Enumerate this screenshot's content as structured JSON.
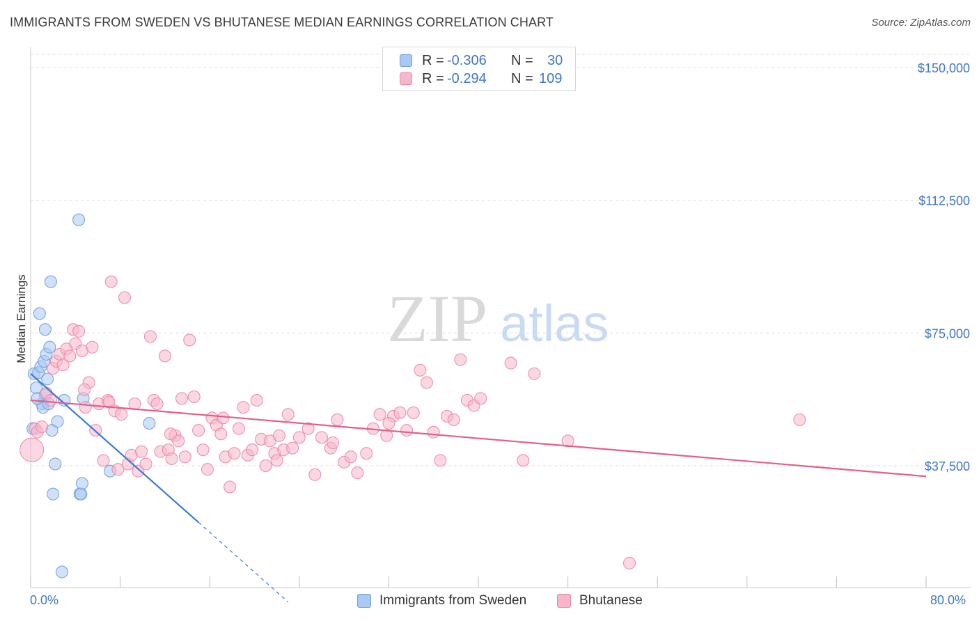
{
  "header": {
    "title": "IMMIGRANTS FROM SWEDEN VS BHUTANESE MEDIAN EARNINGS CORRELATION CHART",
    "source": "Source: ZipAtlas.com"
  },
  "watermark": {
    "part1": "ZIP",
    "part2": "atlas"
  },
  "legend": {
    "rows": [
      {
        "r_label": "R =",
        "r_value": "-0.306",
        "n_label": "N =",
        "n_value": "30",
        "color": "#a9c8f2",
        "border": "#6f9fe0"
      },
      {
        "r_label": "R =",
        "r_value": "-0.294",
        "n_label": "N =",
        "n_value": "109",
        "color": "#f7b6ca",
        "border": "#e889a8"
      }
    ]
  },
  "bottom_legend": {
    "items": [
      {
        "label": "Immigrants from Sweden",
        "color": "#a9c8f2",
        "border": "#6f9fe0"
      },
      {
        "label": "Bhutanese",
        "color": "#f7b6ca",
        "border": "#e889a8"
      }
    ]
  },
  "chart_data": {
    "type": "scatter",
    "title": "IMMIGRANTS FROM SWEDEN VS BHUTANESE MEDIAN EARNINGS CORRELATION CHART",
    "xlabel": "",
    "ylabel": "Median Earnings",
    "xlim": [
      0,
      80
    ],
    "ylim": [
      0,
      155000
    ],
    "x_tick_labels": [
      "0.0%",
      "80.0%"
    ],
    "y_ticks": [
      37500,
      75000,
      112500,
      150000
    ],
    "y_tick_labels": [
      "$37,500",
      "$75,000",
      "$112,500",
      "$150,000"
    ],
    "grid": true,
    "legend_position": "top-center",
    "series": [
      {
        "name": "Immigrants from Sweden",
        "color": "#a9c8f2",
        "stroke": "#6f9fe0",
        "line_color": "#3a78d6",
        "trend": {
          "x0": 0,
          "y0": 63500,
          "x1": 15,
          "y1": 21500,
          "dash_to_x": 23,
          "dash_to_y": -1000
        },
        "points": [
          [
            0.2,
            48000
          ],
          [
            0.3,
            63500
          ],
          [
            0.5,
            59500
          ],
          [
            0.7,
            63800
          ],
          [
            0.8,
            80500
          ],
          [
            0.9,
            65500
          ],
          [
            1.0,
            55000
          ],
          [
            1.1,
            54000
          ],
          [
            1.2,
            67000
          ],
          [
            1.3,
            57500
          ],
          [
            1.4,
            69000
          ],
          [
            1.5,
            62000
          ],
          [
            1.7,
            71000
          ],
          [
            1.8,
            89500
          ],
          [
            1.9,
            47500
          ],
          [
            2.0,
            29500
          ],
          [
            2.2,
            38000
          ],
          [
            2.4,
            50000
          ],
          [
            2.8,
            7500
          ],
          [
            3.0,
            56000
          ],
          [
            4.3,
            107000
          ],
          [
            4.4,
            29500
          ],
          [
            4.5,
            29500
          ],
          [
            4.6,
            32500
          ],
          [
            4.7,
            56500
          ],
          [
            7.1,
            36000
          ],
          [
            10.6,
            49500
          ],
          [
            1.3,
            76000
          ],
          [
            0.6,
            56500
          ],
          [
            1.6,
            55000
          ]
        ]
      },
      {
        "name": "Bhutanese",
        "color": "#f7b6ca",
        "stroke": "#e889a8",
        "line_color": "#e0608a",
        "trend": {
          "x0": 0,
          "y0": 56000,
          "x1": 80,
          "y1": 34500
        },
        "points": [
          [
            0.1,
            42000
          ],
          [
            0.4,
            48000
          ],
          [
            0.6,
            47000
          ],
          [
            1.0,
            48500
          ],
          [
            1.4,
            58000
          ],
          [
            1.8,
            56000
          ],
          [
            2.0,
            65000
          ],
          [
            2.3,
            67000
          ],
          [
            2.6,
            69000
          ],
          [
            2.9,
            66000
          ],
          [
            3.2,
            70500
          ],
          [
            3.5,
            68500
          ],
          [
            3.8,
            76000
          ],
          [
            4.0,
            72000
          ],
          [
            4.3,
            75500
          ],
          [
            4.6,
            70000
          ],
          [
            4.9,
            54000
          ],
          [
            5.2,
            61000
          ],
          [
            5.5,
            71000
          ],
          [
            5.8,
            47500
          ],
          [
            6.1,
            55000
          ],
          [
            6.5,
            39000
          ],
          [
            6.9,
            56000
          ],
          [
            7.2,
            89500
          ],
          [
            7.5,
            53000
          ],
          [
            7.8,
            36500
          ],
          [
            8.1,
            52000
          ],
          [
            8.4,
            85000
          ],
          [
            8.7,
            38000
          ],
          [
            9.0,
            40500
          ],
          [
            9.3,
            55000
          ],
          [
            9.6,
            36000
          ],
          [
            9.9,
            41500
          ],
          [
            10.3,
            38000
          ],
          [
            10.7,
            74000
          ],
          [
            11.0,
            56000
          ],
          [
            11.3,
            55000
          ],
          [
            11.6,
            41500
          ],
          [
            12.0,
            68500
          ],
          [
            12.3,
            42000
          ],
          [
            12.6,
            39500
          ],
          [
            12.9,
            46000
          ],
          [
            13.2,
            44500
          ],
          [
            13.5,
            56500
          ],
          [
            13.8,
            40000
          ],
          [
            14.2,
            73000
          ],
          [
            14.6,
            57000
          ],
          [
            15.0,
            47500
          ],
          [
            15.4,
            42000
          ],
          [
            15.8,
            36500
          ],
          [
            16.2,
            51000
          ],
          [
            16.6,
            49000
          ],
          [
            17.0,
            46500
          ],
          [
            17.4,
            40000
          ],
          [
            17.8,
            31500
          ],
          [
            18.2,
            41000
          ],
          [
            18.6,
            48000
          ],
          [
            19.0,
            54000
          ],
          [
            19.4,
            40500
          ],
          [
            19.8,
            42000
          ],
          [
            20.2,
            56000
          ],
          [
            20.6,
            45000
          ],
          [
            21.0,
            37500
          ],
          [
            21.4,
            44500
          ],
          [
            21.8,
            41000
          ],
          [
            22.2,
            46000
          ],
          [
            22.6,
            42000
          ],
          [
            23.0,
            52000
          ],
          [
            23.4,
            42500
          ],
          [
            24.0,
            45500
          ],
          [
            24.8,
            48000
          ],
          [
            25.4,
            35000
          ],
          [
            26.0,
            45500
          ],
          [
            26.8,
            42500
          ],
          [
            27.4,
            50500
          ],
          [
            28.0,
            38500
          ],
          [
            28.6,
            40000
          ],
          [
            29.2,
            35500
          ],
          [
            30.0,
            41000
          ],
          [
            30.6,
            48000
          ],
          [
            31.2,
            52000
          ],
          [
            31.8,
            46000
          ],
          [
            32.4,
            51500
          ],
          [
            33.0,
            52500
          ],
          [
            33.6,
            47500
          ],
          [
            34.2,
            52500
          ],
          [
            34.8,
            64500
          ],
          [
            35.4,
            61000
          ],
          [
            36.0,
            47000
          ],
          [
            36.6,
            39000
          ],
          [
            37.2,
            51500
          ],
          [
            37.8,
            50500
          ],
          [
            38.4,
            67500
          ],
          [
            39.0,
            56000
          ],
          [
            39.6,
            54500
          ],
          [
            40.2,
            56500
          ],
          [
            42.9,
            66500
          ],
          [
            44.0,
            39000
          ],
          [
            45.0,
            63500
          ],
          [
            48.0,
            44500
          ],
          [
            53.5,
            10000
          ],
          [
            68.7,
            50500
          ],
          [
            4.8,
            59000
          ],
          [
            7.0,
            55500
          ],
          [
            12.5,
            46500
          ],
          [
            17.2,
            51000
          ],
          [
            22.0,
            39000
          ],
          [
            27.0,
            44000
          ],
          [
            32.0,
            49500
          ]
        ]
      }
    ]
  }
}
